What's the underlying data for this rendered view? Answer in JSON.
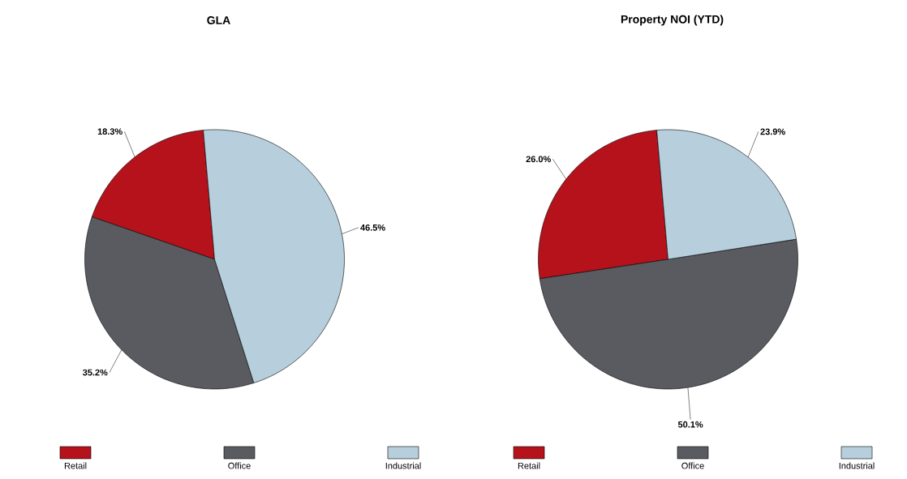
{
  "chart_data": [
    {
      "type": "pie",
      "title": "GLA",
      "categories": [
        "Retail",
        "Office",
        "Industrial"
      ],
      "values": [
        18.3,
        35.2,
        46.5
      ],
      "colors": [
        "#b5121b",
        "#5a5b61",
        "#b7cfdc"
      ],
      "value_labels": [
        "18.3%",
        "35.2%",
        "46.5%"
      ],
      "legend": "bottom"
    },
    {
      "type": "pie",
      "title": "Property NOI (YTD)",
      "categories": [
        "Retail",
        "Office",
        "Industrial"
      ],
      "values": [
        26.0,
        50.1,
        23.9
      ],
      "colors": [
        "#b5121b",
        "#5a5b61",
        "#b7cfdc"
      ],
      "value_labels": [
        "26.0%",
        "50.1%",
        "23.9%"
      ],
      "legend": "bottom"
    }
  ]
}
